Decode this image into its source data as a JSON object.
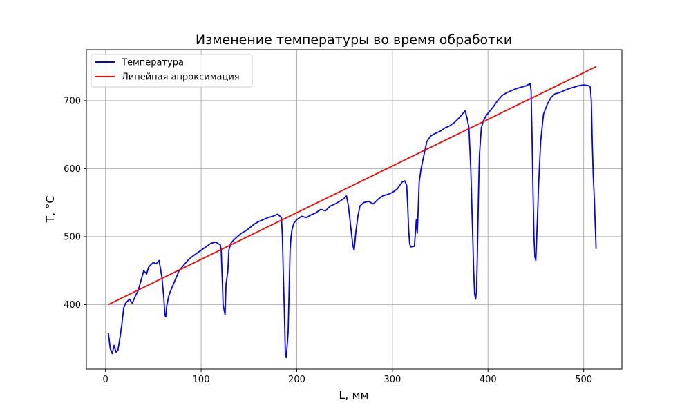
{
  "chart_data": {
    "type": "line",
    "title": "Изменение температуры во время обработки",
    "xlabel": "L, мм",
    "ylabel": "T, °C",
    "xlim": [
      -20,
      540
    ],
    "ylim": [
      305,
      775
    ],
    "xticks": [
      0,
      100,
      200,
      300,
      400,
      500
    ],
    "yticks": [
      400,
      500,
      600,
      700
    ],
    "grid": true,
    "legend_position": "upper-left",
    "series": [
      {
        "name": "Температура",
        "color": "#0000ff",
        "x": [
          3,
          5,
          7,
          9,
          11,
          13,
          15,
          17,
          19,
          21,
          23,
          25,
          28,
          31,
          34,
          37,
          40,
          43,
          45,
          47,
          50,
          53,
          56,
          59,
          61,
          62,
          63,
          64,
          66,
          68,
          71,
          74,
          77,
          80,
          83,
          86,
          90,
          95,
          100,
          105,
          110,
          115,
          120,
          121,
          122,
          123,
          125,
          126,
          128,
          129,
          131,
          134,
          138,
          142,
          146,
          150,
          155,
          160,
          165,
          170,
          175,
          180,
          184,
          185,
          186,
          187,
          188,
          189,
          190,
          191,
          192,
          193,
          194,
          195,
          197,
          200,
          205,
          210,
          215,
          220,
          225,
          230,
          235,
          240,
          245,
          250,
          252,
          254,
          256,
          258,
          259,
          260,
          261,
          262,
          264,
          266,
          270,
          275,
          280,
          285,
          290,
          295,
          300,
          305,
          310,
          313,
          315,
          316,
          317,
          318,
          319,
          320,
          323,
          325,
          326,
          327,
          328,
          330,
          333,
          336,
          340,
          345,
          350,
          355,
          360,
          365,
          370,
          373,
          376,
          378,
          380,
          382,
          384,
          385,
          386,
          387,
          388,
          389,
          390,
          391,
          393,
          395,
          398,
          402,
          405,
          410,
          415,
          420,
          425,
          430,
          435,
          440,
          444,
          445,
          446,
          447,
          448,
          449,
          450,
          451,
          453,
          455,
          458,
          462,
          466,
          470,
          475,
          480,
          485,
          490,
          495,
          500,
          505,
          507,
          508,
          509,
          510,
          511,
          512,
          513
        ],
        "y": [
          358,
          335,
          328,
          340,
          330,
          333,
          350,
          370,
          395,
          402,
          405,
          408,
          402,
          412,
          420,
          435,
          450,
          445,
          455,
          458,
          462,
          460,
          465,
          440,
          410,
          385,
          382,
          398,
          412,
          420,
          430,
          440,
          450,
          455,
          460,
          465,
          470,
          475,
          480,
          485,
          490,
          492,
          488,
          480,
          440,
          400,
          385,
          430,
          450,
          480,
          490,
          495,
          500,
          505,
          508,
          512,
          518,
          522,
          525,
          528,
          530,
          533,
          528,
          500,
          440,
          390,
          330,
          322,
          340,
          360,
          420,
          480,
          500,
          510,
          520,
          525,
          530,
          528,
          532,
          535,
          540,
          538,
          545,
          548,
          552,
          557,
          560,
          545,
          520,
          495,
          485,
          480,
          495,
          510,
          530,
          545,
          550,
          552,
          548,
          555,
          560,
          562,
          565,
          570,
          580,
          582,
          575,
          545,
          510,
          490,
          485,
          485,
          486,
          525,
          505,
          540,
          580,
          600,
          620,
          640,
          648,
          652,
          655,
          660,
          663,
          668,
          675,
          680,
          685,
          675,
          660,
          600,
          500,
          450,
          415,
          408,
          420,
          480,
          560,
          620,
          660,
          670,
          678,
          685,
          690,
          700,
          708,
          712,
          715,
          718,
          720,
          722,
          725,
          715,
          650,
          570,
          500,
          470,
          465,
          500,
          580,
          640,
          680,
          695,
          705,
          710,
          712,
          715,
          718,
          720,
          722,
          723,
          722,
          720,
          700,
          640,
          590,
          560,
          520,
          482
        ]
      },
      {
        "name": "Линейная апроксимация",
        "color": "#ff0000",
        "x": [
          3,
          513
        ],
        "y": [
          400,
          750
        ]
      }
    ]
  }
}
